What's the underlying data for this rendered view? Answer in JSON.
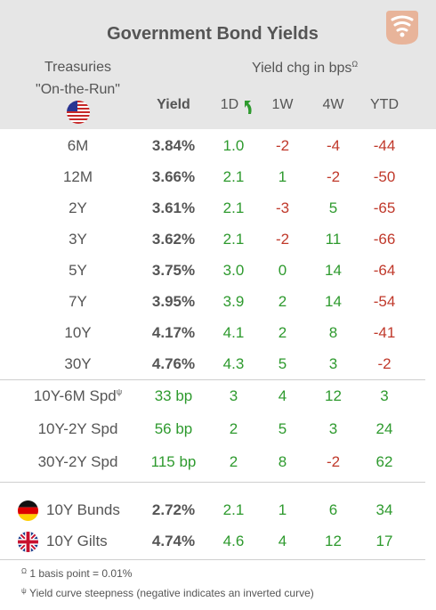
{
  "title": "Government Bond Yields",
  "treasuries_line1": "Treasuries",
  "treasuries_line2": "\"On-the-Run\"",
  "yield_chg_label": "Yield chg in bps",
  "omega": "Ω",
  "psi": "ψ",
  "columns": {
    "yield": "Yield",
    "d1": "1D",
    "w1": "1W",
    "w4": "4W",
    "ytd": "YTD"
  },
  "rows": [
    {
      "label": "6M",
      "yield": "3.84%",
      "d1": "1.0",
      "w1": "-2",
      "w4": "-4",
      "ytd": "-44"
    },
    {
      "label": "12M",
      "yield": "3.66%",
      "d1": "2.1",
      "w1": "1",
      "w4": "-2",
      "ytd": "-50"
    },
    {
      "label": "2Y",
      "yield": "3.61%",
      "d1": "2.1",
      "w1": "-3",
      "w4": "5",
      "ytd": "-65"
    },
    {
      "label": "3Y",
      "yield": "3.62%",
      "d1": "2.1",
      "w1": "-2",
      "w4": "11",
      "ytd": "-66"
    },
    {
      "label": "5Y",
      "yield": "3.75%",
      "d1": "3.0",
      "w1": "0",
      "w4": "14",
      "ytd": "-64"
    },
    {
      "label": "7Y",
      "yield": "3.95%",
      "d1": "3.9",
      "w1": "2",
      "w4": "14",
      "ytd": "-54"
    },
    {
      "label": "10Y",
      "yield": "4.17%",
      "d1": "4.1",
      "w1": "2",
      "w4": "8",
      "ytd": "-41"
    },
    {
      "label": "30Y",
      "yield": "4.76%",
      "d1": "4.3",
      "w1": "5",
      "w4": "3",
      "ytd": "-2"
    }
  ],
  "spreads": [
    {
      "label": "10Y-6M Spd",
      "yield": "33 bp",
      "d1": "3",
      "w1": "4",
      "w4": "12",
      "ytd": "3"
    },
    {
      "label": "10Y-2Y Spd",
      "yield": "56 bp",
      "d1": "2",
      "w1": "5",
      "w4": "3",
      "ytd": "24"
    },
    {
      "label": "30Y-2Y Spd",
      "yield": "115 bp",
      "d1": "2",
      "w1": "8",
      "w4": "-2",
      "ytd": "62"
    }
  ],
  "countries": [
    {
      "label": "10Y Bunds",
      "yield": "2.72%",
      "d1": "2.1",
      "w1": "1",
      "w4": "6",
      "ytd": "34",
      "flag": "germany-flag-icon"
    },
    {
      "label": "10Y Gilts",
      "yield": "4.74%",
      "d1": "4.6",
      "w1": "4",
      "w4": "12",
      "ytd": "17",
      "flag": "uk-flag-icon"
    }
  ],
  "footnotes": {
    "note1": "1 basis point = 0.01%",
    "note2": "Yield curve steepness (negative indicates an inverted curve)"
  },
  "colors": {
    "positive": "#2e9a2e",
    "negative": "#c0392b",
    "header_bg": "#e6e6e6",
    "logo": "#e8b49a"
  }
}
